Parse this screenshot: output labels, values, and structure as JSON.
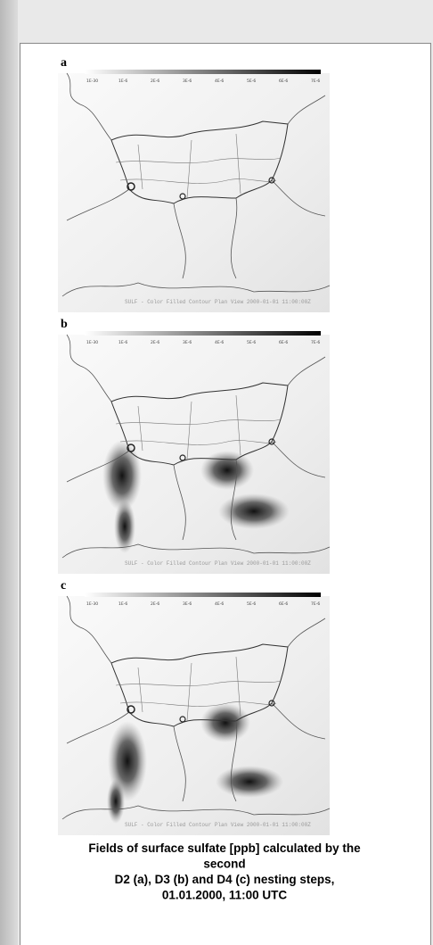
{
  "panels": [
    {
      "label": "a",
      "colorbar_labels": [
        "1E-30",
        "1E-6",
        "2E-6",
        "3E-6",
        "4E-6",
        "5E-6",
        "6E-6",
        "7E-6"
      ],
      "footer": "SULF - Color Filled Contour Plan View 2000-01-01 11:00:00Z"
    },
    {
      "label": "b",
      "colorbar_labels": [
        "1E-30",
        "1E-6",
        "2E-6",
        "3E-6",
        "4E-6",
        "5E-6",
        "6E-6",
        "7E-6"
      ],
      "footer": "SULF - Color Filled Contour Plan View 2000-01-01 11:00:00Z"
    },
    {
      "label": "c",
      "colorbar_labels": [
        "1E-30",
        "1E-6",
        "2E-6",
        "3E-6",
        "4E-6",
        "5E-6",
        "6E-6",
        "7E-6"
      ],
      "footer": "SULF - Color Filled Contour Plan View 2000-01-01 11:00:00Z"
    }
  ],
  "caption": {
    "lines": [
      "Fields of surface sulfate [ppb] calculated by the",
      "second",
      "D2 (a), D3 (b) and D4 (c) nesting steps,",
      "01.01.2000, 11:00 UTC"
    ]
  }
}
